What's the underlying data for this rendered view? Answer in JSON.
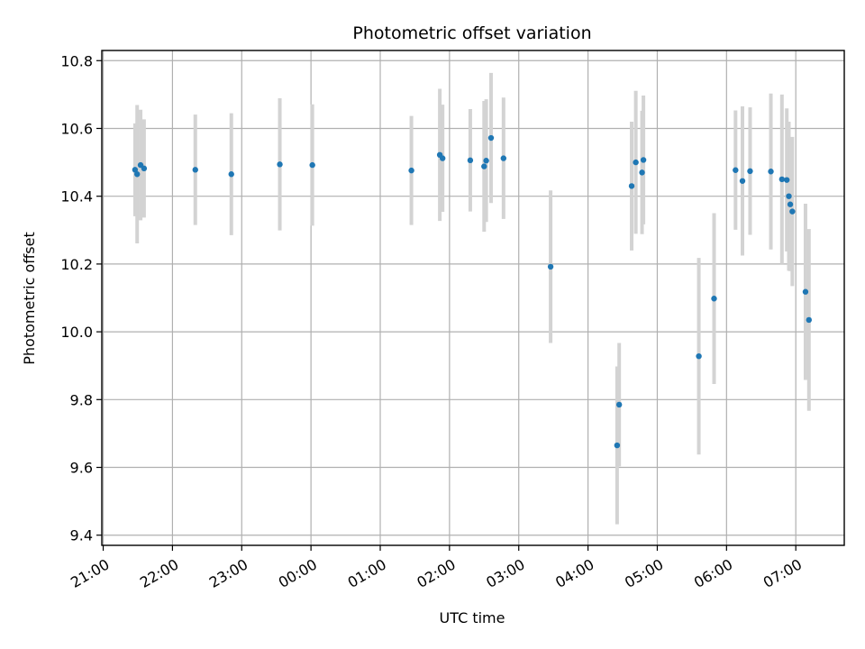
{
  "chart_data": {
    "type": "scatter",
    "title": "Photometric offset variation",
    "xlabel": "UTC time",
    "ylabel": "Photometric offset",
    "x_unit": "hours since 21:00 UTC",
    "xlim": [
      -0.02,
      10.7
    ],
    "ylim": [
      9.37,
      10.83
    ],
    "x_ticks": [
      {
        "value": 0,
        "label": "21:00"
      },
      {
        "value": 1,
        "label": "22:00"
      },
      {
        "value": 2,
        "label": "23:00"
      },
      {
        "value": 3,
        "label": "00:00"
      },
      {
        "value": 4,
        "label": "01:00"
      },
      {
        "value": 5,
        "label": "02:00"
      },
      {
        "value": 6,
        "label": "03:00"
      },
      {
        "value": 7,
        "label": "04:00"
      },
      {
        "value": 8,
        "label": "05:00"
      },
      {
        "value": 9,
        "label": "06:00"
      },
      {
        "value": 10,
        "label": "07:00"
      }
    ],
    "y_ticks": [
      {
        "value": 9.4,
        "label": "9.4"
      },
      {
        "value": 9.6,
        "label": "9.6"
      },
      {
        "value": 9.8,
        "label": "9.8"
      },
      {
        "value": 10.0,
        "label": "10.0"
      },
      {
        "value": 10.2,
        "label": "10.2"
      },
      {
        "value": 10.4,
        "label": "10.4"
      },
      {
        "value": 10.6,
        "label": "10.6"
      },
      {
        "value": 10.8,
        "label": "10.8"
      }
    ],
    "grid": true,
    "colors": {
      "points": "#1f77b4",
      "error_bars": "#d3d3d3",
      "grid": "#b0b0b0"
    },
    "points": [
      {
        "x": 0.46,
        "y": 10.478,
        "err": 0.137
      },
      {
        "x": 0.49,
        "y": 10.465,
        "err": 0.204
      },
      {
        "x": 0.54,
        "y": 10.492,
        "err": 0.163
      },
      {
        "x": 0.59,
        "y": 10.482,
        "err": 0.145
      },
      {
        "x": 1.33,
        "y": 10.478,
        "err": 0.163
      },
      {
        "x": 1.85,
        "y": 10.465,
        "err": 0.18
      },
      {
        "x": 2.55,
        "y": 10.494,
        "err": 0.195
      },
      {
        "x": 3.02,
        "y": 10.492,
        "err": 0.179
      },
      {
        "x": 4.45,
        "y": 10.476,
        "err": 0.161
      },
      {
        "x": 4.86,
        "y": 10.522,
        "err": 0.195
      },
      {
        "x": 4.9,
        "y": 10.512,
        "err": 0.158
      },
      {
        "x": 5.3,
        "y": 10.506,
        "err": 0.151
      },
      {
        "x": 5.5,
        "y": 10.488,
        "err": 0.193
      },
      {
        "x": 5.53,
        "y": 10.505,
        "err": 0.181
      },
      {
        "x": 5.6,
        "y": 10.572,
        "err": 0.192
      },
      {
        "x": 5.78,
        "y": 10.512,
        "err": 0.179
      },
      {
        "x": 6.46,
        "y": 10.192,
        "err": 0.225
      },
      {
        "x": 7.42,
        "y": 9.665,
        "err": 0.233
      },
      {
        "x": 7.45,
        "y": 9.785,
        "err": 0.182
      },
      {
        "x": 7.63,
        "y": 10.43,
        "err": 0.19
      },
      {
        "x": 7.69,
        "y": 10.5,
        "err": 0.211
      },
      {
        "x": 7.78,
        "y": 10.47,
        "err": 0.182
      },
      {
        "x": 7.8,
        "y": 10.507,
        "err": 0.19
      },
      {
        "x": 8.6,
        "y": 9.928,
        "err": 0.29
      },
      {
        "x": 8.82,
        "y": 10.098,
        "err": 0.252
      },
      {
        "x": 9.13,
        "y": 10.477,
        "err": 0.176
      },
      {
        "x": 9.23,
        "y": 10.445,
        "err": 0.22
      },
      {
        "x": 9.34,
        "y": 10.474,
        "err": 0.188
      },
      {
        "x": 9.64,
        "y": 10.473,
        "err": 0.23
      },
      {
        "x": 9.8,
        "y": 10.45,
        "err": 0.25
      },
      {
        "x": 9.87,
        "y": 10.448,
        "err": 0.211
      },
      {
        "x": 9.9,
        "y": 10.4,
        "err": 0.22
      },
      {
        "x": 9.92,
        "y": 10.376,
        "err": 0.197
      },
      {
        "x": 9.95,
        "y": 10.355,
        "err": 0.22
      },
      {
        "x": 10.14,
        "y": 10.118,
        "err": 0.26
      },
      {
        "x": 10.19,
        "y": 10.035,
        "err": 0.268
      }
    ]
  }
}
